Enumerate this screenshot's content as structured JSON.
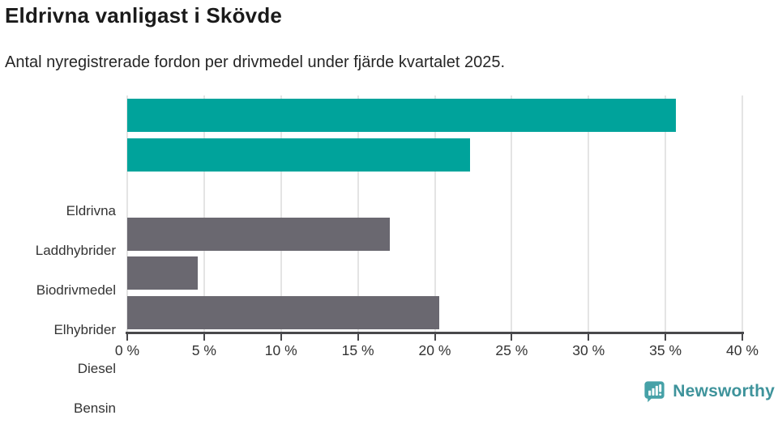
{
  "title": "Eldrivna vanligast i Skövde",
  "subtitle": "Antal nyregistrerade fordon per drivmedel under fjärde kvartalet 2025.",
  "chart_data": {
    "type": "bar",
    "orientation": "horizontal",
    "title": "Eldrivna vanligast i Skövde",
    "subtitle": "Antal nyregistrerade fordon per drivmedel under fjärde kvartalet 2025.",
    "categories": [
      "Eldrivna",
      "Laddhybrider",
      "Biodrivmedel",
      "Elhybrider",
      "Diesel",
      "Bensin"
    ],
    "values": [
      35.7,
      22.3,
      0,
      17.1,
      4.6,
      20.3
    ],
    "unit": "%",
    "xlabel": "",
    "ylabel": "",
    "xlim": [
      0,
      40
    ],
    "x_tick_step": 5,
    "x_tick_labels": [
      "0 %",
      "5 %",
      "10 %",
      "15 %",
      "20 %",
      "25 %",
      "30 %",
      "35 %",
      "40 %"
    ],
    "grid": "vertical",
    "legend": "none",
    "bar_colors": [
      "#00a39b",
      "#00a39b",
      "#6a6870",
      "#6a6870",
      "#6a6870",
      "#6a6870"
    ]
  },
  "colors": {
    "highlight_teal": "#00a39b",
    "neutral_gray": "#6a6870",
    "axis": "#48484b",
    "gridline": "#e4e4e4",
    "brand_teal": "#3e939b"
  },
  "branding": {
    "logo_text": "Newsworthy",
    "icon": "newsworthy-bar-chart-speech-bubble-icon"
  }
}
